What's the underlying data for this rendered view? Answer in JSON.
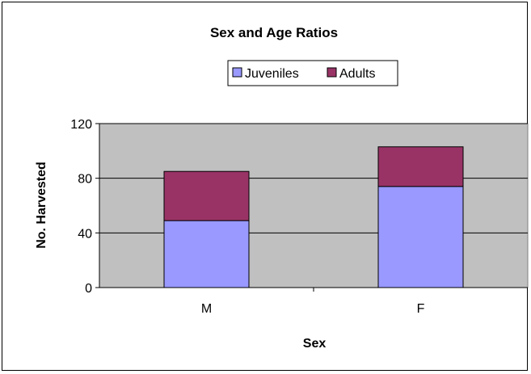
{
  "chart_data": {
    "type": "bar",
    "stacked": true,
    "title": "Sex and Age Ratios",
    "xlabel": "Sex",
    "ylabel": "No. Harvested",
    "categories": [
      "M",
      "F"
    ],
    "series": [
      {
        "name": "Juveniles",
        "values": [
          49,
          74
        ],
        "color": "#9999ff"
      },
      {
        "name": "Adults",
        "values": [
          36,
          29
        ],
        "color": "#993366"
      }
    ],
    "ylim": [
      0,
      120
    ],
    "yticks": [
      0,
      40,
      80,
      120
    ],
    "ytick_labels": [
      "0",
      "40",
      "80",
      "120"
    ],
    "grid": true,
    "plot_background": "#c0c0c0",
    "legend_position": "top"
  }
}
